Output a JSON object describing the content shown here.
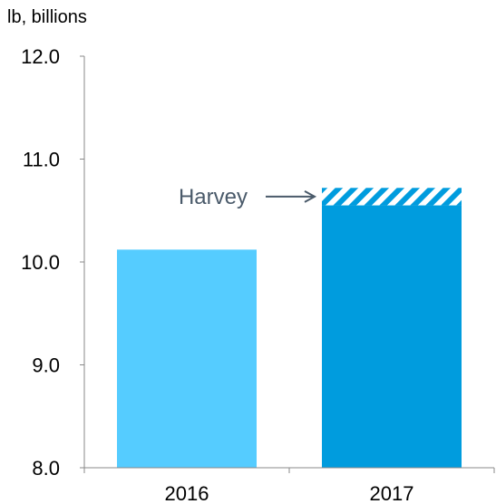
{
  "chart_data": {
    "type": "bar",
    "ylabel": "lb, billions",
    "categories": [
      "2016",
      "2017"
    ],
    "values": [
      10.12,
      10.55
    ],
    "colors": [
      "#55ccff",
      "#009cde"
    ],
    "hatch_color": "#009cde",
    "annotation": {
      "text": "Harvey",
      "category": "2017",
      "hatch_from": 10.55,
      "hatch_to": 10.72,
      "color": "#4a5a6a"
    },
    "ylim": [
      8.0,
      12.0
    ],
    "yticks": [
      "8.0",
      "9.0",
      "10.0",
      "11.0",
      "12.0"
    ],
    "grid": false,
    "legend": "none"
  }
}
